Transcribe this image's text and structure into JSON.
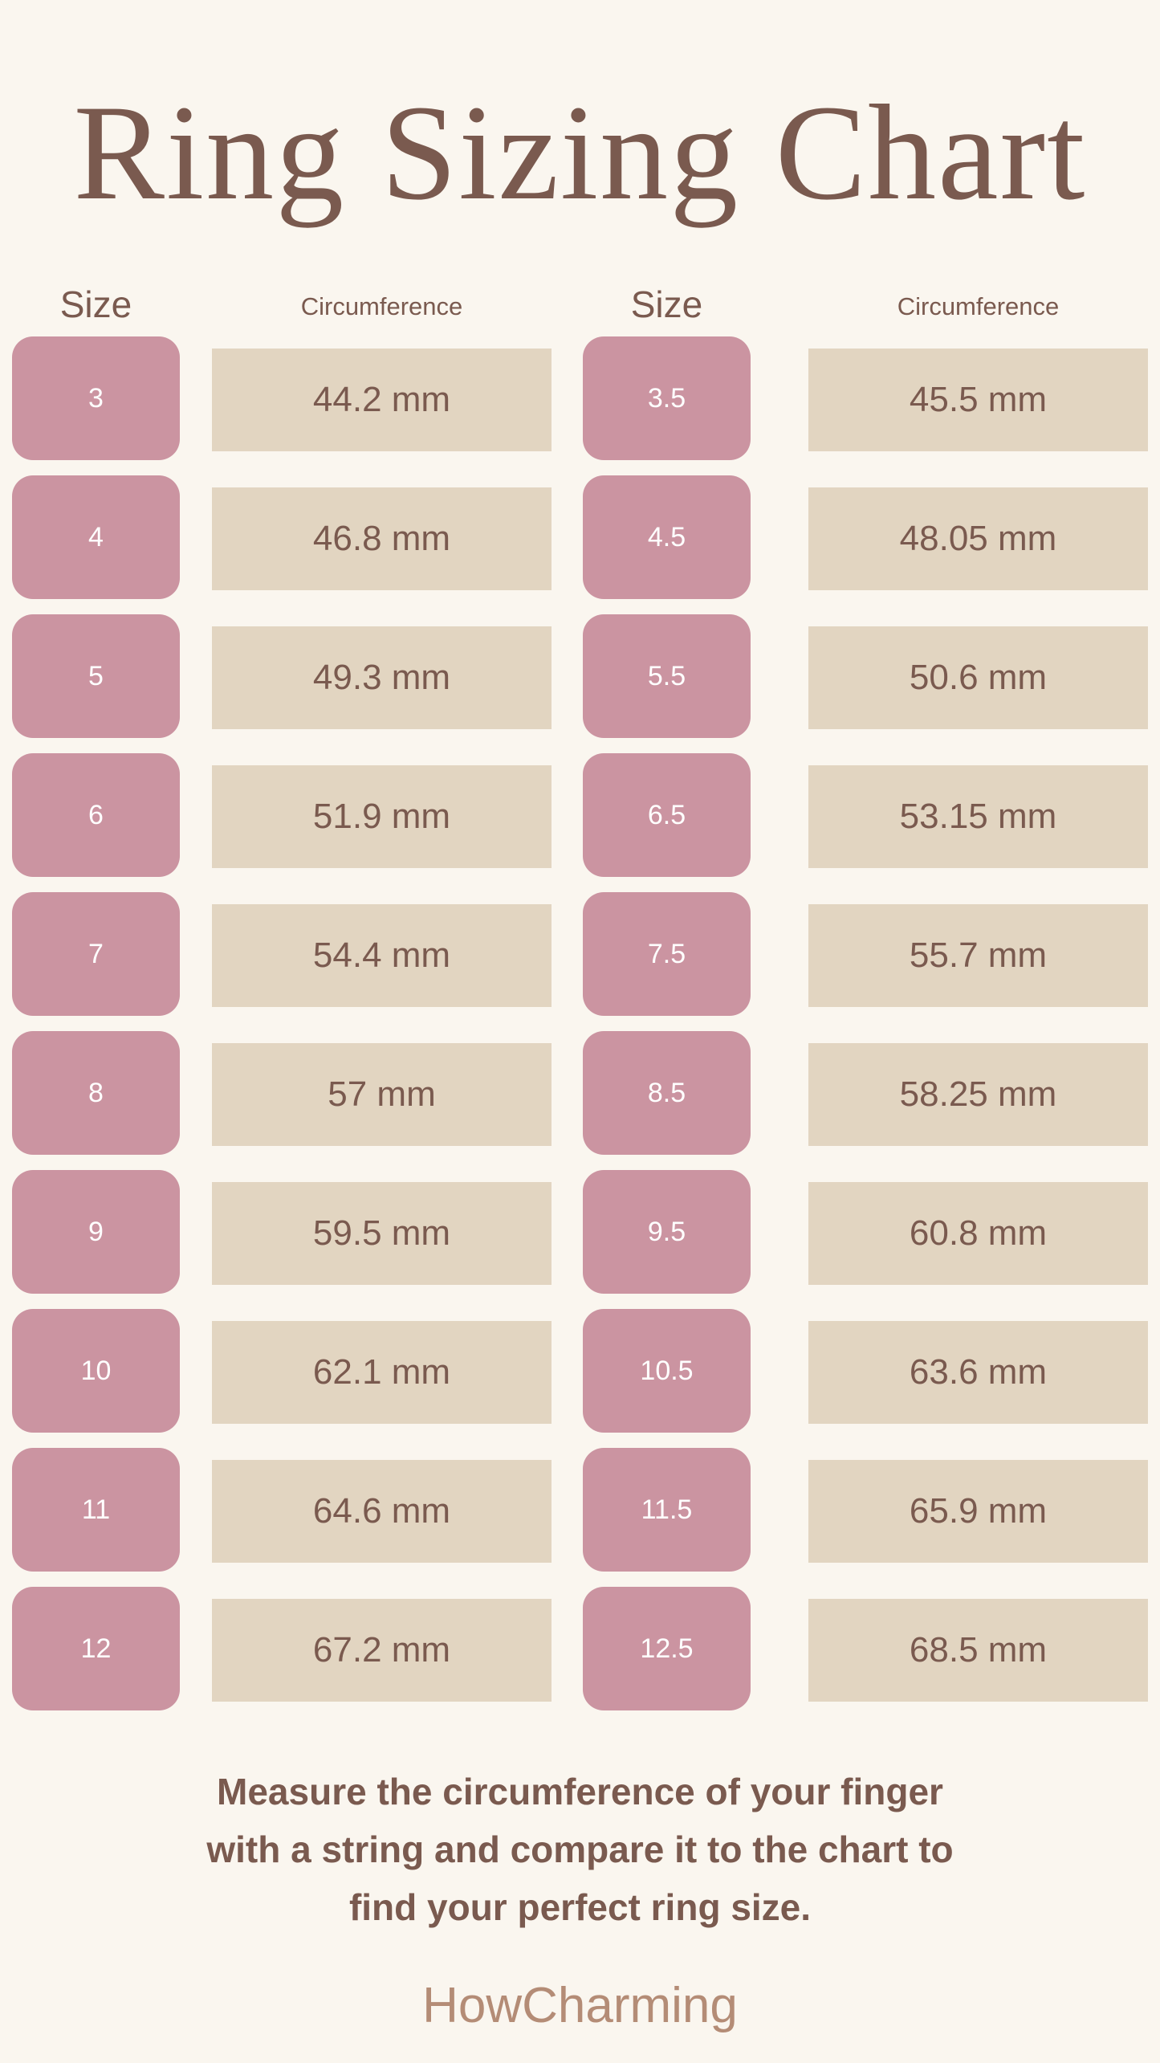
{
  "title": "Ring Sizing Chart",
  "headers": {
    "size": "Size",
    "circumference": "Circumference"
  },
  "colors": {
    "background": "#faf6ef",
    "size_box": "#cb94a1",
    "circumference_box": "#e2d5c1",
    "text": "#7a5a4f",
    "brand": "#b48c76"
  },
  "left_column": [
    {
      "size": "3",
      "circumference": "44.2 mm"
    },
    {
      "size": "4",
      "circumference": "46.8 mm"
    },
    {
      "size": "5",
      "circumference": "49.3 mm"
    },
    {
      "size": "6",
      "circumference": "51.9 mm"
    },
    {
      "size": "7",
      "circumference": "54.4 mm"
    },
    {
      "size": "8",
      "circumference": "57 mm"
    },
    {
      "size": "9",
      "circumference": "59.5 mm"
    },
    {
      "size": "10",
      "circumference": "62.1 mm"
    },
    {
      "size": "11",
      "circumference": "64.6 mm"
    },
    {
      "size": "12",
      "circumference": "67.2 mm"
    }
  ],
  "right_column": [
    {
      "size": "3.5",
      "circumference": "45.5 mm"
    },
    {
      "size": "4.5",
      "circumference": "48.05 mm"
    },
    {
      "size": "5.5",
      "circumference": "50.6 mm"
    },
    {
      "size": "6.5",
      "circumference": "53.15 mm"
    },
    {
      "size": "7.5",
      "circumference": "55.7 mm"
    },
    {
      "size": "8.5",
      "circumference": "58.25 mm"
    },
    {
      "size": "9.5",
      "circumference": "60.8 mm"
    },
    {
      "size": "10.5",
      "circumference": "63.6 mm"
    },
    {
      "size": "11.5",
      "circumference": "65.9 mm"
    },
    {
      "size": "12.5",
      "circumference": "68.5 mm"
    }
  ],
  "note_lines": [
    "Measure the circumference of your finger",
    "with a string and compare it to the chart to",
    "find your perfect ring size."
  ],
  "brand": "HowCharming"
}
